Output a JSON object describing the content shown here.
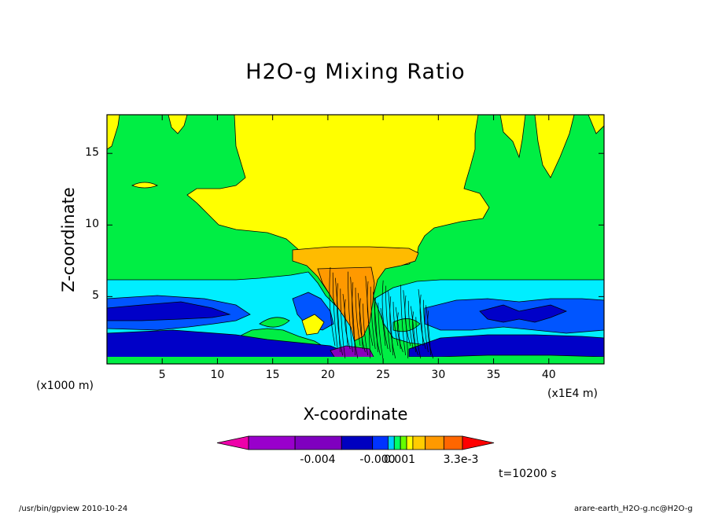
{
  "chart_data": {
    "type": "heatmap",
    "title": "H2O-g Mixing Ratio",
    "xlabel": "X-coordinate",
    "ylabel": "Z-coordinate",
    "x_unit_left": "(x1000 m)",
    "x_unit_right": "(x1E4 m)",
    "x_ticks": [
      5,
      10,
      15,
      20,
      25,
      30,
      35,
      40
    ],
    "y_ticks": [
      5,
      10,
      15
    ],
    "xlim": [
      0,
      45
    ],
    "ylim": [
      0.3,
      17.7
    ],
    "colorbar": {
      "labels": [
        "-0.004",
        "-0.000",
        "0.001",
        "3.3e-3"
      ],
      "colors": [
        "#9900cc",
        "#7f00bf",
        "#0000c0",
        "#0033ff",
        "#00ccff",
        "#00ff66",
        "#66ff00",
        "#ffff00",
        "#ffcc00",
        "#ff9900",
        "#ff6600",
        "#ff0000"
      ]
    },
    "regions": {
      "background": "#00ee44",
      "yellow": "#ffff00",
      "light_orange": "#ffbb00",
      "orange": "#ff9900",
      "cyan": "#00eeff",
      "blue_mid": "#0055ff",
      "blue_dark": "#0000c8",
      "purple": "#8800bb"
    }
  },
  "time_label": "t=10200 s",
  "footer": {
    "left": "/usr/bin/gpview   2010-10-24",
    "right": "arare-earth_H2O-g.nc@H2O-g"
  }
}
